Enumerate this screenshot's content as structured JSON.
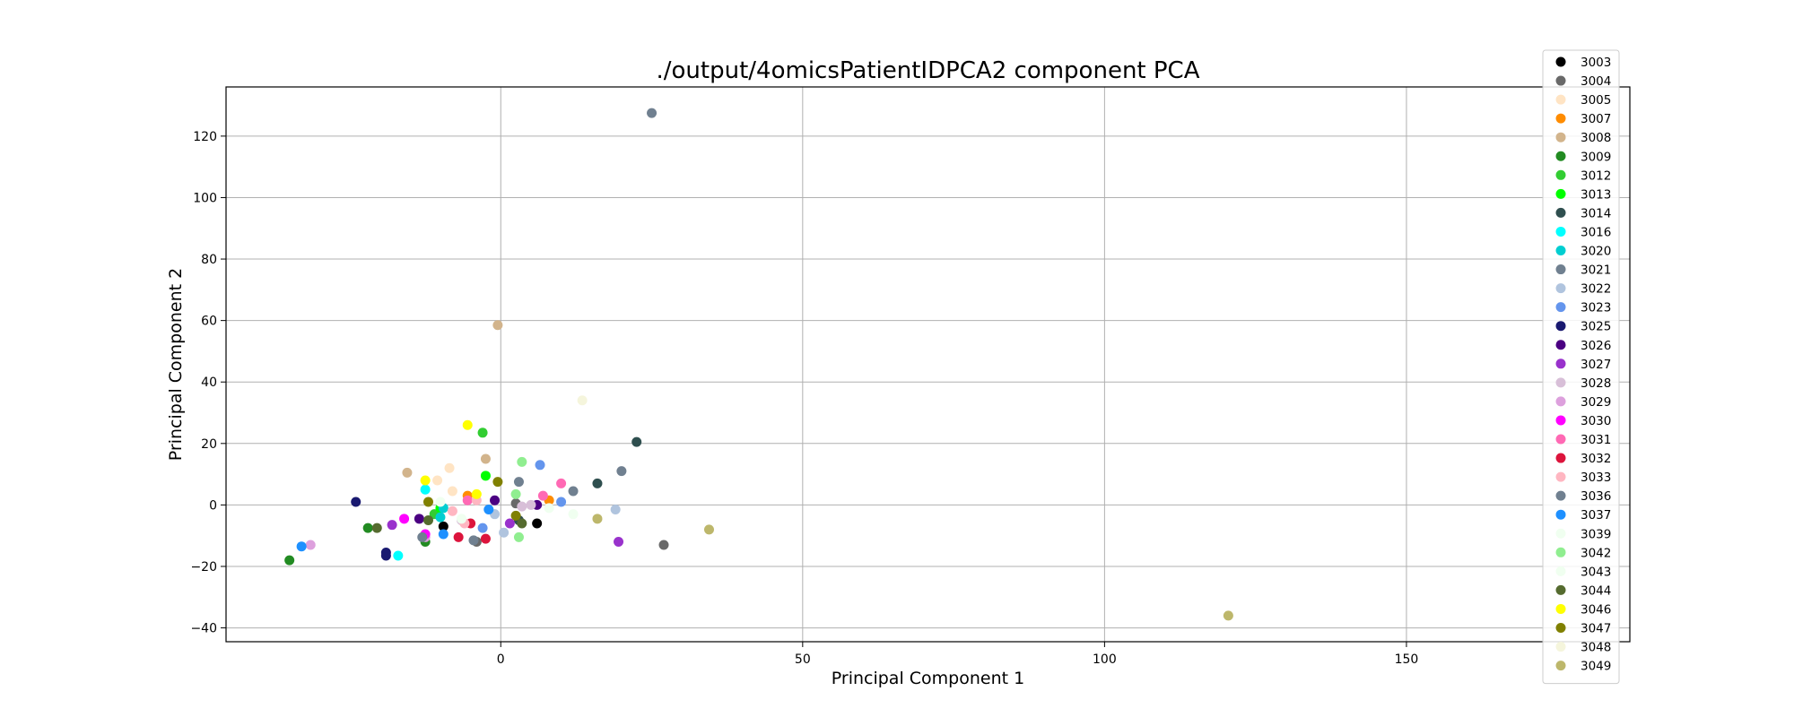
{
  "chart_data": {
    "type": "scatter",
    "title": "./output/4omicsPatientIDPCA2 component PCA",
    "xlabel": "Principal Component 1",
    "ylabel": "Principal Component 2",
    "xlim": [
      -45.5,
      187
    ],
    "ylim": [
      -44.5,
      136
    ],
    "xticks": [
      0,
      50,
      100,
      150
    ],
    "yticks": [
      -40,
      -20,
      0,
      20,
      40,
      60,
      80,
      100,
      120
    ],
    "grid": true,
    "legend_position": "right",
    "series": [
      {
        "name": "3003",
        "color": "#000000",
        "points": [
          [
            -9.5,
            -7
          ],
          [
            6,
            -6
          ]
        ]
      },
      {
        "name": "3004",
        "color": "#696969",
        "points": [
          [
            -4,
            -12
          ],
          [
            2.5,
            0.5
          ],
          [
            27,
            -13
          ]
        ]
      },
      {
        "name": "3005",
        "color": "#ffe4c4",
        "points": [
          [
            -8.5,
            12
          ],
          [
            -8,
            4.5
          ],
          [
            -10.5,
            8
          ]
        ]
      },
      {
        "name": "3007",
        "color": "#ff8c00",
        "points": [
          [
            -5.5,
            3
          ],
          [
            8,
            1.5
          ]
        ]
      },
      {
        "name": "3008",
        "color": "#d2b48c",
        "points": [
          [
            -0.5,
            58.5
          ],
          [
            -15.5,
            10.5
          ],
          [
            -2.5,
            15
          ]
        ]
      },
      {
        "name": "3009",
        "color": "#228b22",
        "points": [
          [
            -35,
            -18
          ],
          [
            -22,
            -7.5
          ],
          [
            -12.5,
            -12
          ]
        ]
      },
      {
        "name": "3012",
        "color": "#32cd32",
        "points": [
          [
            -3,
            23.5
          ],
          [
            -11,
            -3
          ]
        ]
      },
      {
        "name": "3013",
        "color": "#00ff00",
        "points": [
          [
            -2.5,
            9.5
          ],
          [
            -10,
            -1
          ]
        ]
      },
      {
        "name": "3014",
        "color": "#2f4f4f",
        "points": [
          [
            22.5,
            20.5
          ],
          [
            16,
            7
          ],
          [
            3,
            -5
          ]
        ]
      },
      {
        "name": "3016",
        "color": "#00ffff",
        "points": [
          [
            -17,
            -16.5
          ],
          [
            -12.5,
            5
          ]
        ]
      },
      {
        "name": "3020",
        "color": "#00ced1",
        "points": [
          [
            -9.5,
            -1
          ],
          [
            -10,
            -4
          ]
        ]
      },
      {
        "name": "3021",
        "color": "#708090",
        "points": [
          [
            25,
            127.5
          ],
          [
            20,
            11
          ],
          [
            12,
            4.5
          ]
        ]
      },
      {
        "name": "3022",
        "color": "#b0c4de",
        "points": [
          [
            19,
            -1.5
          ],
          [
            0.5,
            -9
          ],
          [
            -1,
            -3
          ]
        ]
      },
      {
        "name": "3023",
        "color": "#6495ed",
        "points": [
          [
            6.5,
            13
          ],
          [
            10,
            1
          ],
          [
            -3,
            -7.5
          ]
        ]
      },
      {
        "name": "3025",
        "color": "#191970",
        "points": [
          [
            -24,
            1
          ],
          [
            -19,
            -16.5
          ],
          [
            -19,
            -15.5
          ]
        ]
      },
      {
        "name": "3026",
        "color": "#4b0082",
        "points": [
          [
            -1,
            1.5
          ],
          [
            -13.5,
            -4.5
          ],
          [
            6,
            0
          ]
        ]
      },
      {
        "name": "3027",
        "color": "#9932cc",
        "points": [
          [
            19.5,
            -12
          ],
          [
            -18,
            -6.5
          ],
          [
            1.5,
            -6
          ]
        ]
      },
      {
        "name": "3028",
        "color": "#d8bfd8",
        "points": [
          [
            3.5,
            -0.5
          ],
          [
            -6.5,
            -5
          ],
          [
            5,
            0
          ]
        ]
      },
      {
        "name": "3029",
        "color": "#dda0dd",
        "points": [
          [
            -31.5,
            -13
          ],
          [
            -12.5,
            -10.5
          ]
        ]
      },
      {
        "name": "3030",
        "color": "#ff00ff",
        "points": [
          [
            -16,
            -4.5
          ],
          [
            -12.5,
            -9.5
          ]
        ]
      },
      {
        "name": "3031",
        "color": "#ff69b4",
        "points": [
          [
            10,
            7
          ],
          [
            7,
            3
          ],
          [
            -5.5,
            1.5
          ]
        ]
      },
      {
        "name": "3032",
        "color": "#dc143c",
        "points": [
          [
            -7,
            -10.5
          ],
          [
            -2.5,
            -11
          ],
          [
            -5,
            -6
          ]
        ]
      },
      {
        "name": "3033",
        "color": "#ffb6c1",
        "points": [
          [
            -6,
            -6
          ],
          [
            -4,
            1.5
          ],
          [
            -8,
            -2
          ]
        ]
      },
      {
        "name": "3036",
        "color": "#708090",
        "points": [
          [
            -13,
            -10.5
          ],
          [
            -4.5,
            -11.5
          ],
          [
            3,
            7.5
          ]
        ]
      },
      {
        "name": "3037",
        "color": "#1e90ff",
        "points": [
          [
            -33,
            -13.5
          ],
          [
            -9.5,
            -9.5
          ],
          [
            -2,
            -1.5
          ]
        ]
      },
      {
        "name": "3039",
        "color": "#f0fff0",
        "points": [
          [
            -6.5,
            -4.5
          ],
          [
            12,
            -3
          ]
        ]
      },
      {
        "name": "3042",
        "color": "#90ee90",
        "points": [
          [
            3.5,
            14
          ],
          [
            3,
            -10.5
          ],
          [
            2.5,
            3.5
          ]
        ]
      },
      {
        "name": "3043",
        "color": "#f0fff0",
        "points": [
          [
            8,
            -1
          ],
          [
            -10,
            1
          ]
        ]
      },
      {
        "name": "3044",
        "color": "#556b2f",
        "points": [
          [
            -20.5,
            -7.5
          ],
          [
            -12,
            -5
          ],
          [
            3.5,
            -6
          ]
        ]
      },
      {
        "name": "3046",
        "color": "#ffff00",
        "points": [
          [
            -5.5,
            26
          ],
          [
            -4,
            3.5
          ],
          [
            -12.5,
            8
          ]
        ]
      },
      {
        "name": "3047",
        "color": "#808000",
        "points": [
          [
            -12,
            1
          ],
          [
            -0.5,
            7.5
          ],
          [
            2.5,
            -3.5
          ]
        ]
      },
      {
        "name": "3048",
        "color": "#f5f5dc",
        "points": [
          [
            13.5,
            34
          ]
        ]
      },
      {
        "name": "3049",
        "color": "#bdb76b",
        "points": [
          [
            120.5,
            -36
          ],
          [
            34.5,
            -8
          ],
          [
            16,
            -4.5
          ]
        ]
      }
    ]
  }
}
